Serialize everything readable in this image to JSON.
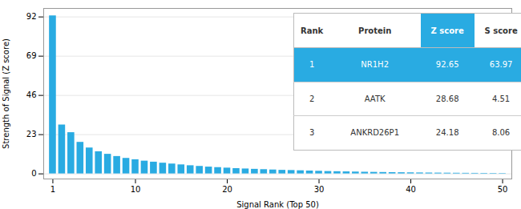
{
  "chart_data": {
    "type": "bar",
    "xlabel": "Signal Rank (Top 50)",
    "ylabel": "Strength of Signal (Z score)",
    "x": [
      1,
      2,
      3,
      4,
      5,
      6,
      7,
      8,
      9,
      10,
      11,
      12,
      13,
      14,
      15,
      16,
      17,
      18,
      19,
      20,
      21,
      22,
      23,
      24,
      25,
      26,
      27,
      28,
      29,
      30,
      31,
      32,
      33,
      34,
      35,
      36,
      37,
      38,
      39,
      40,
      41,
      42,
      43,
      44,
      45,
      46,
      47,
      48,
      49,
      50
    ],
    "values": [
      92.65,
      28.68,
      24.18,
      18.5,
      15.2,
      13.0,
      11.5,
      10.2,
      9.1,
      8.3,
      7.5,
      6.9,
      6.3,
      5.8,
      5.3,
      4.8,
      4.4,
      4.0,
      3.7,
      3.4,
      3.1,
      2.9,
      2.7,
      2.5,
      2.3,
      2.1,
      2.0,
      1.85,
      1.7,
      1.55,
      1.4,
      1.3,
      1.2,
      1.1,
      1.0,
      0.92,
      0.84,
      0.77,
      0.7,
      0.64,
      0.58,
      0.53,
      0.48,
      0.44,
      0.4,
      0.36,
      0.33,
      0.3,
      0.27,
      0.24
    ],
    "color": "#29abe2",
    "xlim": [
      0,
      51
    ],
    "xticks": [
      1,
      10,
      20,
      30,
      40,
      50
    ],
    "ylim": [
      -3,
      97
    ],
    "yticks": [
      0,
      23,
      46,
      69,
      92
    ],
    "grid": true,
    "table": {
      "columns": [
        "Rank",
        "Protein",
        "Z score",
        "S score"
      ],
      "rows": [
        [
          "1",
          "NR1H2",
          "92.65",
          "63.97"
        ],
        [
          "2",
          "AATK",
          "28.68",
          "4.51"
        ],
        [
          "3",
          "ANKRD26P1",
          "24.18",
          "8.06"
        ]
      ],
      "highlight_row": 0,
      "highlight_column": 2,
      "color": "#29abe2"
    }
  }
}
